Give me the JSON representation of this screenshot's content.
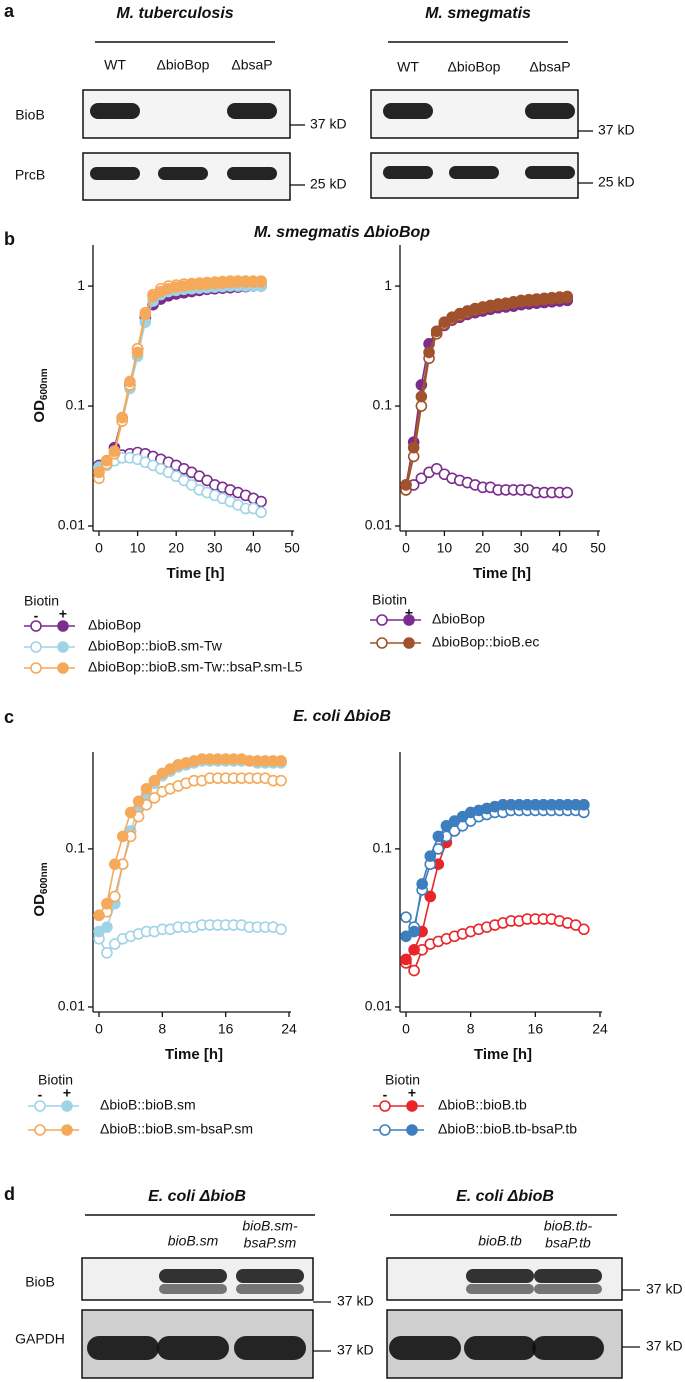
{
  "panel_labels": [
    "a",
    "b",
    "c",
    "d"
  ],
  "blots_a": [
    {
      "title": "M. tuberculosis",
      "lanes": [
        "WT",
        "ΔbioBop",
        "ΔbsaP"
      ],
      "rows": [
        "BioB",
        "PrcB"
      ],
      "markers": [
        "37 kD",
        "25 kD"
      ]
    },
    {
      "title": "M. smegmatis",
      "lanes": [
        "WT",
        "ΔbioBop",
        "ΔbsaP"
      ],
      "markers": [
        "37 kD",
        "25 kD"
      ]
    }
  ],
  "panel_b_title": "M. smegmatis  ΔbioBop",
  "panel_c_title": "E. coli ΔbioB",
  "chart_data": [
    {
      "type": "line",
      "log_y": true,
      "xlabel": "Time [h]",
      "ylabel": "OD",
      "ylabel_sub": "600nm",
      "x": [
        0,
        2,
        4,
        6,
        8,
        10,
        12,
        14,
        16,
        18,
        20,
        22,
        24,
        26,
        28,
        30,
        32,
        34,
        36,
        38,
        40,
        42
      ],
      "xlim": [
        0,
        50
      ],
      "xticks": [
        0,
        10,
        20,
        30,
        40,
        50
      ],
      "ylim": [
        0.01,
        2.2
      ],
      "yticks": [
        0.01,
        0.1,
        1
      ],
      "legend_title": "Biotin",
      "legend_columns": [
        "-",
        "+"
      ],
      "series": [
        {
          "name": "ΔbioBop",
          "color": "#7b2d8e",
          "values_minus": [
            0.032,
            0.034,
            0.037,
            0.039,
            0.04,
            0.041,
            0.04,
            0.038,
            0.036,
            0.034,
            0.032,
            0.03,
            0.028,
            0.026,
            0.024,
            0.022,
            0.021,
            0.02,
            0.019,
            0.018,
            0.017,
            0.016
          ],
          "values_plus": [
            0.031,
            0.035,
            0.045,
            0.08,
            0.15,
            0.3,
            0.55,
            0.7,
            0.78,
            0.83,
            0.86,
            0.88,
            0.9,
            0.92,
            0.94,
            0.95,
            0.96,
            0.97,
            0.98,
            0.99,
            1.0,
            1.0
          ]
        },
        {
          "name": "ΔbioBop::bioB.sm-Tw",
          "color": "#9fd3e6",
          "values_minus": [
            0.03,
            0.032,
            0.035,
            0.037,
            0.037,
            0.036,
            0.034,
            0.032,
            0.03,
            0.028,
            0.026,
            0.024,
            0.022,
            0.02,
            0.019,
            0.018,
            0.017,
            0.016,
            0.015,
            0.014,
            0.014,
            0.013
          ],
          "values_plus": [
            0.031,
            0.034,
            0.042,
            0.075,
            0.14,
            0.26,
            0.5,
            0.75,
            0.85,
            0.9,
            0.92,
            0.94,
            0.95,
            0.96,
            0.97,
            0.98,
            0.99,
            1.0,
            1.0,
            1.0,
            1.0,
            1.0
          ]
        },
        {
          "name": "ΔbioBop::bioB.sm-Tw::bsaP.sm-L5",
          "color": "#f5a95a",
          "values_minus": [
            0.025,
            0.033,
            0.04,
            0.075,
            0.15,
            0.3,
            0.6,
            0.85,
            0.95,
            1.0,
            1.02,
            1.04,
            1.05,
            1.06,
            1.07,
            1.08,
            1.09,
            1.1,
            1.1,
            1.1,
            1.1,
            1.1
          ],
          "values_plus": [
            0.028,
            0.035,
            0.042,
            0.08,
            0.16,
            0.28,
            0.58,
            0.82,
            0.9,
            0.95,
            0.98,
            1.0,
            1.02,
            1.03,
            1.04,
            1.05,
            1.06,
            1.07,
            1.08,
            1.08,
            1.08,
            1.08
          ]
        }
      ]
    },
    {
      "type": "line",
      "log_y": true,
      "xlabel": "Time [h]",
      "x": [
        0,
        2,
        4,
        6,
        8,
        10,
        12,
        14,
        16,
        18,
        20,
        22,
        24,
        26,
        28,
        30,
        32,
        34,
        36,
        38,
        40,
        42
      ],
      "xlim": [
        0,
        50
      ],
      "xticks": [
        0,
        10,
        20,
        30,
        40,
        50
      ],
      "ylim": [
        0.01,
        2.2
      ],
      "yticks": [
        0.01,
        0.1,
        1
      ],
      "legend_title": "Biotin",
      "legend_columns": [
        "-",
        "+"
      ],
      "series": [
        {
          "name": "ΔbioBop",
          "color": "#7b2d8e",
          "values_minus": [
            0.02,
            0.022,
            0.025,
            0.028,
            0.03,
            0.027,
            0.025,
            0.024,
            0.023,
            0.022,
            0.021,
            0.021,
            0.02,
            0.02,
            0.02,
            0.02,
            0.02,
            0.019,
            0.019,
            0.019,
            0.019,
            0.019
          ],
          "values_plus": [
            0.022,
            0.05,
            0.15,
            0.33,
            0.42,
            0.47,
            0.52,
            0.55,
            0.58,
            0.6,
            0.62,
            0.64,
            0.66,
            0.67,
            0.68,
            0.7,
            0.71,
            0.72,
            0.73,
            0.74,
            0.75,
            0.76
          ]
        },
        {
          "name": "ΔbioBop::bioB.ec",
          "color": "#a0522d",
          "values_minus": [
            0.02,
            0.038,
            0.1,
            0.25,
            0.4,
            0.48,
            0.53,
            0.57,
            0.6,
            0.63,
            0.65,
            0.67,
            0.69,
            0.7,
            0.72,
            0.74,
            0.75,
            0.76,
            0.77,
            0.78,
            0.79,
            0.8
          ],
          "values_plus": [
            0.022,
            0.045,
            0.12,
            0.28,
            0.42,
            0.5,
            0.55,
            0.59,
            0.62,
            0.65,
            0.67,
            0.69,
            0.71,
            0.72,
            0.74,
            0.76,
            0.77,
            0.78,
            0.79,
            0.8,
            0.81,
            0.82
          ]
        }
      ]
    },
    {
      "type": "line",
      "log_y": true,
      "xlabel": "Time [h]",
      "ylabel": "OD",
      "ylabel_sub": "600nm",
      "x": [
        0,
        1,
        2,
        3,
        4,
        5,
        6,
        7,
        8,
        9,
        10,
        11,
        12,
        13,
        14,
        15,
        16,
        17,
        18,
        19,
        20,
        21,
        22,
        23
      ],
      "xlim": [
        0,
        24
      ],
      "xticks": [
        0,
        8,
        16,
        24
      ],
      "ylim": [
        0.01,
        0.41
      ],
      "yticks": [
        0.01,
        0.1
      ],
      "legend_title": "Biotin",
      "legend_columns": [
        "-",
        "+"
      ],
      "series": [
        {
          "name": "ΔbioB::bioB.sm",
          "color": "#9fd3e6",
          "values_minus": [
            0.027,
            0.022,
            0.025,
            0.027,
            0.028,
            0.029,
            0.03,
            0.03,
            0.031,
            0.031,
            0.032,
            0.032,
            0.032,
            0.033,
            0.033,
            0.033,
            0.033,
            0.033,
            0.033,
            0.032,
            0.032,
            0.032,
            0.032,
            0.031
          ],
          "values_plus": [
            0.03,
            0.032,
            0.045,
            0.08,
            0.13,
            0.18,
            0.22,
            0.26,
            0.29,
            0.31,
            0.33,
            0.34,
            0.35,
            0.36,
            0.36,
            0.36,
            0.36,
            0.36,
            0.36,
            0.36,
            0.35,
            0.35,
            0.35,
            0.35
          ]
        },
        {
          "name": "ΔbioB::bioB.sm-bsaP.sm",
          "color": "#f5a95a",
          "values_minus": [
            0.038,
            0.04,
            0.05,
            0.08,
            0.12,
            0.16,
            0.19,
            0.21,
            0.23,
            0.24,
            0.25,
            0.26,
            0.27,
            0.27,
            0.28,
            0.28,
            0.28,
            0.28,
            0.28,
            0.28,
            0.28,
            0.28,
            0.27,
            0.27
          ],
          "values_plus": [
            0.038,
            0.045,
            0.08,
            0.12,
            0.17,
            0.2,
            0.24,
            0.27,
            0.3,
            0.32,
            0.34,
            0.35,
            0.36,
            0.37,
            0.37,
            0.37,
            0.37,
            0.37,
            0.37,
            0.36,
            0.36,
            0.36,
            0.36,
            0.36
          ]
        }
      ]
    },
    {
      "type": "line",
      "log_y": true,
      "xlabel": "Time [h]",
      "x": [
        0,
        1,
        2,
        3,
        4,
        5,
        6,
        7,
        8,
        9,
        10,
        11,
        12,
        13,
        14,
        15,
        16,
        17,
        18,
        19,
        20,
        21,
        22
      ],
      "xlim": [
        0,
        24
      ],
      "xticks": [
        0,
        8,
        16,
        24
      ],
      "ylim": [
        0.01,
        0.41
      ],
      "yticks": [
        0.01,
        0.1
      ],
      "legend_title": "Biotin",
      "legend_columns": [
        "-",
        "+"
      ],
      "series": [
        {
          "name": "ΔbioB::bioB.tb",
          "color": "#e8262a",
          "values_minus": [
            0.019,
            0.017,
            0.023,
            0.025,
            0.026,
            0.027,
            0.028,
            0.029,
            0.03,
            0.031,
            0.032,
            0.033,
            0.034,
            0.035,
            0.035,
            0.036,
            0.036,
            0.036,
            0.036,
            0.035,
            0.034,
            0.033,
            0.031
          ],
          "values_plus": [
            0.02,
            0.023,
            0.03,
            0.05,
            0.08,
            0.11,
            0.13,
            0.15,
            0.16,
            0.17,
            0.18,
            0.185,
            0.19,
            0.19,
            0.19,
            0.19,
            0.19,
            0.19,
            0.19,
            0.19,
            0.19,
            0.19,
            0.19
          ]
        },
        {
          "name": "ΔbioB::bioB.tb-bsaP.tb",
          "color": "#3d7ebf",
          "values_minus": [
            0.037,
            0.032,
            0.055,
            0.08,
            0.1,
            0.12,
            0.13,
            0.14,
            0.15,
            0.16,
            0.165,
            0.17,
            0.17,
            0.175,
            0.175,
            0.175,
            0.175,
            0.175,
            0.175,
            0.175,
            0.175,
            0.175,
            0.17
          ],
          "values_plus": [
            0.028,
            0.03,
            0.06,
            0.09,
            0.12,
            0.14,
            0.15,
            0.16,
            0.17,
            0.175,
            0.18,
            0.185,
            0.19,
            0.19,
            0.19,
            0.19,
            0.19,
            0.19,
            0.19,
            0.19,
            0.19,
            0.19,
            0.19
          ]
        }
      ]
    }
  ],
  "blots_d": [
    {
      "title": "E. coli ΔbioB",
      "lanes": [
        [
          "bioB.sm"
        ],
        [
          "bioB.sm-",
          "bsaP.sm"
        ]
      ],
      "rows": [
        "BioB",
        "GAPDH"
      ],
      "markers": [
        "37 kD",
        "37 kD"
      ]
    },
    {
      "title": "E. coli ΔbioB",
      "lanes": [
        [
          "bioB.tb"
        ],
        [
          "bioB.tb-",
          "bsaP.tb"
        ]
      ],
      "markers": [
        "37 kD",
        "37 kD"
      ]
    }
  ]
}
